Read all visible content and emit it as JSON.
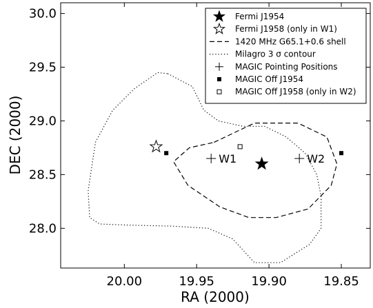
{
  "chart_data": {
    "type": "scatter",
    "xlabel": "RA (2000)",
    "ylabel": "DEC (2000)",
    "xlim": [
      20.044,
      19.83
    ],
    "ylim": [
      27.63,
      30.1
    ],
    "x_reversed": true,
    "xticks": [
      20.0,
      19.95,
      19.9,
      19.85
    ],
    "xtick_labels": [
      "20.00",
      "19.95",
      "19.90",
      "19.85"
    ],
    "yticks": [
      28.0,
      28.5,
      29.0,
      29.5,
      30.0
    ],
    "ytick_labels": [
      "28.0",
      "28.5",
      "29.0",
      "29.5",
      "30.0"
    ],
    "grid": false,
    "legend_placement": "top-right",
    "series": [
      {
        "name": "Fermi J1954",
        "marker": "filled-star",
        "points": [
          {
            "x": 19.905,
            "y": 28.6
          }
        ]
      },
      {
        "name": "Fermi J1958 (only in W1)",
        "marker": "open-star",
        "points": [
          {
            "x": 19.978,
            "y": 28.76
          }
        ]
      },
      {
        "name": "1420 MHz G65.1+0.6 shell",
        "marker": "dashed-line",
        "points": [
          {
            "x": 19.938,
            "y": 28.8
          },
          {
            "x": 19.91,
            "y": 28.98
          },
          {
            "x": 19.88,
            "y": 28.98
          },
          {
            "x": 19.86,
            "y": 28.85
          },
          {
            "x": 19.853,
            "y": 28.6
          },
          {
            "x": 19.857,
            "y": 28.4
          },
          {
            "x": 19.873,
            "y": 28.18
          },
          {
            "x": 19.895,
            "y": 28.1
          },
          {
            "x": 19.914,
            "y": 28.1
          },
          {
            "x": 19.934,
            "y": 28.2
          },
          {
            "x": 19.956,
            "y": 28.4
          },
          {
            "x": 19.966,
            "y": 28.62
          },
          {
            "x": 19.955,
            "y": 28.75
          },
          {
            "x": 19.938,
            "y": 28.8
          }
        ]
      },
      {
        "name": "Milagro 3 σ contour",
        "marker": "dotted-line",
        "points": [
          {
            "x": 19.97,
            "y": 29.44
          },
          {
            "x": 19.953,
            "y": 29.32
          },
          {
            "x": 19.945,
            "y": 29.1
          },
          {
            "x": 19.935,
            "y": 29.0
          },
          {
            "x": 19.918,
            "y": 28.95
          },
          {
            "x": 19.903,
            "y": 28.95
          },
          {
            "x": 19.888,
            "y": 28.85
          },
          {
            "x": 19.875,
            "y": 28.7
          },
          {
            "x": 19.867,
            "y": 28.5
          },
          {
            "x": 19.864,
            "y": 28.3
          },
          {
            "x": 19.864,
            "y": 28.0
          },
          {
            "x": 19.872,
            "y": 27.85
          },
          {
            "x": 19.892,
            "y": 27.68
          },
          {
            "x": 19.91,
            "y": 27.68
          },
          {
            "x": 19.925,
            "y": 27.9
          },
          {
            "x": 19.942,
            "y": 28.0
          },
          {
            "x": 19.967,
            "y": 28.02
          },
          {
            "x": 19.997,
            "y": 28.03
          },
          {
            "x": 20.017,
            "y": 28.04
          },
          {
            "x": 20.024,
            "y": 28.1
          },
          {
            "x": 20.025,
            "y": 28.35
          },
          {
            "x": 20.02,
            "y": 28.8
          },
          {
            "x": 20.008,
            "y": 29.1
          },
          {
            "x": 19.993,
            "y": 29.3
          },
          {
            "x": 19.977,
            "y": 29.45
          },
          {
            "x": 19.97,
            "y": 29.44
          }
        ]
      },
      {
        "name": "MAGIC Pointing Positions",
        "marker": "plus",
        "points": [
          {
            "x": 19.94,
            "y": 28.65,
            "label": "W1"
          },
          {
            "x": 19.879,
            "y": 28.65,
            "label": "W2"
          }
        ]
      },
      {
        "name": "MAGIC Off J1954",
        "marker": "filled-square",
        "points": [
          {
            "x": 19.971,
            "y": 28.7
          },
          {
            "x": 19.85,
            "y": 28.7
          }
        ]
      },
      {
        "name": "MAGIC Off J1958 (only in W2)",
        "marker": "open-square",
        "points": [
          {
            "x": 19.92,
            "y": 28.76
          }
        ]
      }
    ]
  }
}
